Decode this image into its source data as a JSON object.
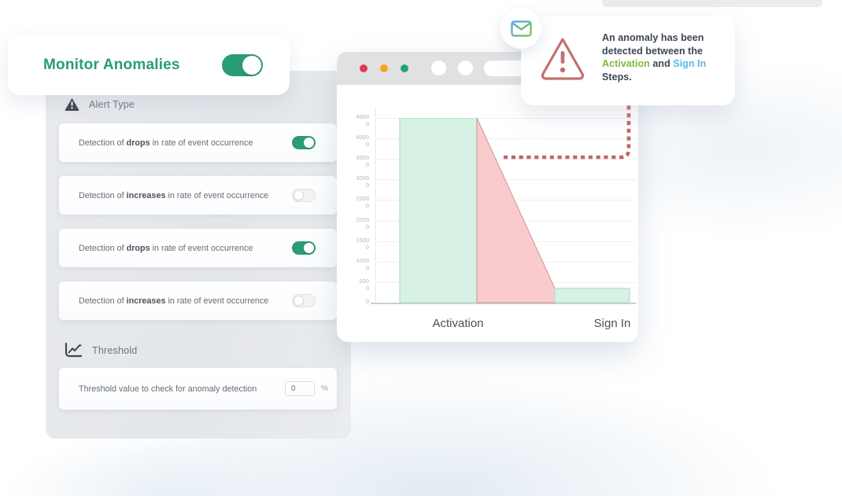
{
  "monitor_card": {
    "title": "Monitor Anomalies",
    "toggle_state": "on"
  },
  "settings_panel": {
    "alert_type": {
      "icon": "warning-triangle-icon",
      "label": "Alert Type"
    },
    "rows": [
      {
        "prefix": "Detection of ",
        "keyword": "drops",
        "suffix": " in rate of event occurrence",
        "toggle_state": "on"
      },
      {
        "prefix": "Detection of ",
        "keyword": "increases",
        "suffix": " in rate of event occurrence",
        "toggle_state": "off"
      },
      {
        "prefix": "Detection of ",
        "keyword": "drops",
        "suffix": " in rate of event occurrence",
        "toggle_state": "on"
      },
      {
        "prefix": "Detection of ",
        "keyword": "increases",
        "suffix": " in rate of event occurrence",
        "toggle_state": "off"
      }
    ],
    "threshold": {
      "icon": "line-chart-icon",
      "label": "Threshold",
      "row": {
        "label": "Threshold value to check for anomaly detection",
        "value": "0",
        "unit": "%"
      }
    }
  },
  "browser_window": {
    "traffic_lights": {
      "red": "#e13a50",
      "yellow": "#f5a61a",
      "green": "#2aa070"
    }
  },
  "chart_data": {
    "type": "funnel",
    "categories": [
      "Activation",
      "Sign In"
    ],
    "values": [
      45000,
      3500
    ],
    "ylim": [
      0,
      45000
    ],
    "ytick_step": 5000,
    "yticks_display": [
      "4500\n0",
      "4000\n0",
      "3500\n0",
      "3000\n0",
      "2500\n0",
      "2000\n0",
      "1500\n0",
      "1000\n0",
      "500\n0",
      "0"
    ],
    "grid": "horizontal",
    "legend": "none",
    "colors": {
      "step_fill": "#d7f1e5",
      "step_stroke": "#a6dcc4",
      "drop_fill": "#f9cbcc",
      "drop_stroke": "#d09394",
      "annotation_dash": "#bf6764"
    },
    "annotation": "dashed connector from notification card to drop region at y=35000"
  },
  "notification": {
    "message": {
      "p1": "An anomaly has been detected between the ",
      "k1": "Activation",
      "p2": " and ",
      "k2": "Sign In",
      "p3": " Steps."
    },
    "accent_green": "#83b93f",
    "accent_blue": "#57b8ec",
    "warning_color": "#c4706d"
  },
  "colors": {
    "brand_green": "#2a9c78"
  }
}
